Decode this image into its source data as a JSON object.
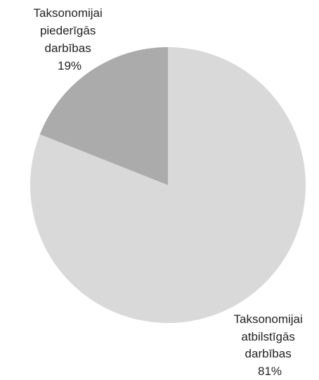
{
  "chart_data": {
    "type": "pie",
    "title": "",
    "slices": [
      {
        "label_lines": [
          "Taksonomijai",
          "atbilstīgās",
          "darbības"
        ],
        "value": 81,
        "value_label": "81%",
        "color": "#d9d9d9"
      },
      {
        "label_lines": [
          "Taksonomijai",
          "piederīgās",
          "darbības"
        ],
        "value": 19,
        "value_label": "19%",
        "color": "#ababab"
      }
    ],
    "start_angle_deg": 0,
    "direction": "clockwise"
  }
}
